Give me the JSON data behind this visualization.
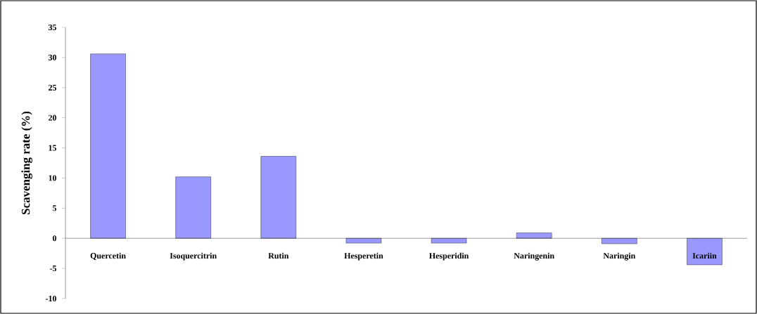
{
  "chart_data": {
    "type": "bar",
    "ylabel": "Scavenging rate (%)",
    "categories": [
      "Quercetin",
      "Isoquercitrin",
      "Rutin",
      "Hesperetin",
      "Hesperidin",
      "Naringenin",
      "Naringin",
      "Icariin"
    ],
    "values": [
      30.6,
      10.2,
      13.6,
      -0.8,
      -0.8,
      0.9,
      -0.9,
      -4.4
    ],
    "color": "#9999ff",
    "ylim": [
      -10,
      35
    ],
    "yticks": [
      -10,
      -5,
      0,
      5,
      10,
      15,
      20,
      25,
      30,
      35
    ]
  }
}
